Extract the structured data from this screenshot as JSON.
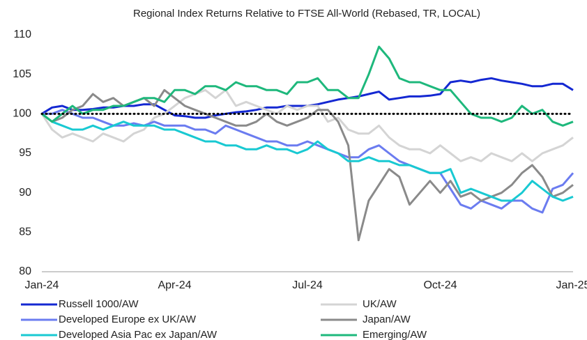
{
  "chart_data": {
    "type": "line",
    "title": "Regional Index Returns Relative to FTSE All-World (Rebased, TR, LOCAL)",
    "categories": [
      "Jan-24",
      null,
      null,
      null,
      null,
      null,
      null,
      null,
      null,
      null,
      null,
      null,
      null,
      "Apr-24",
      null,
      null,
      null,
      null,
      null,
      null,
      null,
      null,
      null,
      null,
      null,
      null,
      "Jul-24",
      null,
      null,
      null,
      null,
      null,
      null,
      null,
      null,
      null,
      null,
      null,
      null,
      "Oct-24",
      null,
      null,
      null,
      null,
      null,
      null,
      null,
      null,
      null,
      null,
      null,
      null,
      "Jan-25"
    ],
    "series": [
      {
        "name": "Russell 1000/AW",
        "color": "#1428d2",
        "values": [
          100,
          100.8,
          101,
          100.5,
          100.5,
          100.6,
          100.8,
          100.8,
          101,
          101,
          101.2,
          101.2,
          100.5,
          99.8,
          99.7,
          99.5,
          99.5,
          99.8,
          100,
          100.2,
          100.3,
          100.5,
          100.8,
          100.8,
          101,
          101,
          101,
          101.2,
          101.5,
          101.8,
          102,
          102.2,
          102.5,
          102.8,
          101.8,
          102,
          102.2,
          102.2,
          102.3,
          102.5,
          104,
          104.2,
          104,
          104.3,
          104.5,
          104.2,
          104,
          103.8,
          103.5,
          103.5,
          103.8,
          103.8,
          103
        ]
      },
      {
        "name": "UK/AW",
        "color": "#d4d4d4",
        "values": [
          100,
          98,
          97,
          97.5,
          97,
          96.5,
          97.5,
          97,
          96.5,
          97.5,
          98,
          99.5,
          100,
          101,
          102,
          102.5,
          103,
          102,
          103,
          101,
          101.5,
          101,
          100.5,
          100,
          101,
          100.5,
          101,
          101,
          99,
          99.5,
          98,
          97.5,
          97.5,
          98.5,
          97,
          96,
          95.5,
          95.5,
          95,
          96,
          95,
          94,
          94.5,
          94,
          95,
          94.5,
          94,
          95,
          94,
          95,
          95.5,
          96,
          97
        ]
      },
      {
        "name": "Developed Europe ex UK/AW",
        "color": "#6b7cf0",
        "values": [
          100,
          100,
          100.5,
          100,
          99.5,
          99.5,
          99,
          98.5,
          98.5,
          98.8,
          98.5,
          99,
          98.5,
          98.5,
          98.5,
          98,
          98,
          97.5,
          98.5,
          98,
          97.5,
          97,
          96.5,
          96.5,
          96,
          96,
          96.5,
          96,
          95.5,
          95,
          94.5,
          94.5,
          95.5,
          96,
          95,
          94,
          93.5,
          93,
          92.5,
          92.5,
          90.5,
          88.5,
          88,
          89,
          88.5,
          88,
          89,
          89,
          88,
          87.5,
          90.5,
          91,
          92.5
        ]
      },
      {
        "name": "Japan/AW",
        "color": "#8a8a8a",
        "values": [
          100,
          99,
          99.5,
          100.5,
          101,
          102.5,
          101.5,
          102,
          101,
          101.5,
          102,
          101,
          103,
          102,
          101,
          100.5,
          100,
          99.5,
          99,
          98.5,
          98.5,
          99,
          100,
          99,
          98.5,
          99,
          99.5,
          100.5,
          100.5,
          99,
          96,
          84,
          89,
          91,
          93,
          92,
          88.5,
          90,
          91.5,
          90,
          91.5,
          89.5,
          90,
          89,
          89.5,
          90,
          91,
          92.5,
          93.5,
          92,
          89.5,
          90,
          91
        ]
      },
      {
        "name": "Developed Asia Pac ex Japan/AW",
        "color": "#19c9d2",
        "values": [
          100,
          99,
          98.5,
          98,
          98,
          98.5,
          98,
          98.5,
          99,
          98.5,
          98.5,
          98.5,
          98,
          98,
          97.5,
          97,
          96.5,
          96.5,
          96,
          96,
          95.5,
          95.5,
          96,
          95.5,
          95.5,
          95,
          95.5,
          96.5,
          95.5,
          95,
          94,
          94,
          94.5,
          94,
          94,
          93.5,
          93.5,
          93,
          92.5,
          92.5,
          93,
          90,
          90.5,
          90,
          89.5,
          89,
          89,
          90,
          91.5,
          90.5,
          89.5,
          89,
          89.5
        ]
      },
      {
        "name": "Emerging/AW",
        "color": "#1eb87c",
        "values": [
          100,
          99,
          100,
          101,
          100,
          100.5,
          100.5,
          101,
          101,
          101.5,
          102,
          102,
          101.5,
          103,
          103,
          102.5,
          103.5,
          103.5,
          103,
          104,
          103.5,
          103.5,
          103,
          103,
          102.5,
          104,
          104,
          104.5,
          103,
          103,
          102,
          102,
          105,
          108.5,
          107,
          104.5,
          104,
          104,
          103.5,
          103,
          103,
          101.5,
          100,
          99.5,
          99.5,
          99,
          99.5,
          101,
          100,
          100.5,
          99,
          98.5,
          99
        ]
      }
    ],
    "hline": 100,
    "ylim": [
      80,
      110
    ],
    "yticks": [
      80,
      85,
      90,
      95,
      100,
      105,
      110
    ],
    "grid": false,
    "legend": "bottom"
  }
}
